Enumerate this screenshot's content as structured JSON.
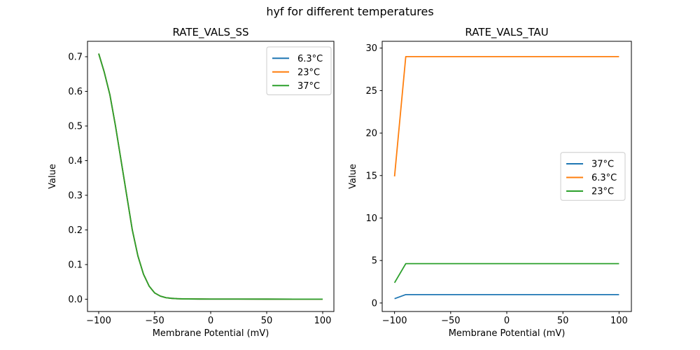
{
  "figure": {
    "suptitle": "hyf for different temperatures",
    "background": "#ffffff",
    "text_color": "#000000",
    "spine_color": "#000000",
    "legend_border_color": "#cccccc",
    "legend_background": "#ffffff"
  },
  "chart_data": [
    {
      "id": "ss",
      "type": "line",
      "title": "RATE_VALS_SS",
      "xlabel": "Membrane Potential (mV)",
      "ylabel": "Value",
      "grid": false,
      "xlim": [
        -110,
        110
      ],
      "ylim": [
        -0.0355,
        0.7445
      ],
      "xticks": {
        "values": [
          -100,
          -50,
          0,
          50,
          100
        ],
        "labels": [
          "−100",
          "−50",
          "0",
          "50",
          "100"
        ]
      },
      "yticks": {
        "values": [
          0.0,
          0.1,
          0.2,
          0.3,
          0.4,
          0.5,
          0.6,
          0.7
        ],
        "labels": [
          "0.0",
          "0.1",
          "0.2",
          "0.3",
          "0.4",
          "0.5",
          "0.6",
          "0.7"
        ]
      },
      "legend": {
        "loc": "upper right",
        "entries": [
          {
            "label": "6.3°C",
            "color": "#1f77b4"
          },
          {
            "label": "23°C",
            "color": "#ff7f0e"
          },
          {
            "label": "37°C",
            "color": "#2ca02c"
          }
        ]
      },
      "series": [
        {
          "name": "6.3°C",
          "color": "#1f77b4",
          "x": [
            -100,
            -95,
            -90,
            -85,
            -80,
            -75,
            -70,
            -65,
            -60,
            -55,
            -50,
            -45,
            -40,
            -35,
            -30,
            -25,
            -20,
            -10,
            0,
            25,
            50,
            75,
            100
          ],
          "y": [
            0.709,
            0.655,
            0.59,
            0.5,
            0.4,
            0.3,
            0.2,
            0.125,
            0.072,
            0.038,
            0.018,
            0.009,
            0.0045,
            0.0025,
            0.0015,
            0.001,
            0.0008,
            0.0005,
            0.0004,
            0.0003,
            0.0002,
            0.0001,
            0.0001
          ]
        },
        {
          "name": "23°C",
          "color": "#ff7f0e",
          "x": [
            -100,
            -95,
            -90,
            -85,
            -80,
            -75,
            -70,
            -65,
            -60,
            -55,
            -50,
            -45,
            -40,
            -35,
            -30,
            -25,
            -20,
            -10,
            0,
            25,
            50,
            75,
            100
          ],
          "y": [
            0.709,
            0.655,
            0.59,
            0.5,
            0.4,
            0.3,
            0.2,
            0.125,
            0.072,
            0.038,
            0.018,
            0.009,
            0.0045,
            0.0025,
            0.0015,
            0.001,
            0.0008,
            0.0005,
            0.0004,
            0.0003,
            0.0002,
            0.0001,
            0.0001
          ]
        },
        {
          "name": "37°C",
          "color": "#2ca02c",
          "x": [
            -100,
            -95,
            -90,
            -85,
            -80,
            -75,
            -70,
            -65,
            -60,
            -55,
            -50,
            -45,
            -40,
            -35,
            -30,
            -25,
            -20,
            -10,
            0,
            25,
            50,
            75,
            100
          ],
          "y": [
            0.709,
            0.655,
            0.59,
            0.5,
            0.4,
            0.3,
            0.2,
            0.125,
            0.072,
            0.038,
            0.018,
            0.009,
            0.0045,
            0.0025,
            0.0015,
            0.001,
            0.0008,
            0.0005,
            0.0004,
            0.0003,
            0.0002,
            0.0001,
            0.0001
          ]
        }
      ]
    },
    {
      "id": "tau",
      "type": "line",
      "title": "RATE_VALS_TAU",
      "xlabel": "Membrane Potential (mV)",
      "ylabel": "Value",
      "grid": false,
      "xlim": [
        -111,
        111
      ],
      "ylim": [
        -1.0,
        30.8
      ],
      "xticks": {
        "values": [
          -100,
          -50,
          0,
          50,
          100
        ],
        "labels": [
          "−100",
          "−50",
          "0",
          "50",
          "100"
        ]
      },
      "yticks": {
        "values": [
          0,
          5,
          10,
          15,
          20,
          25,
          30
        ],
        "labels": [
          "0",
          "5",
          "10",
          "15",
          "20",
          "25",
          "30"
        ]
      },
      "legend": {
        "loc": "center right",
        "entries": [
          {
            "label": "37°C",
            "color": "#1f77b4"
          },
          {
            "label": "6.3°C",
            "color": "#ff7f0e"
          },
          {
            "label": "23°C",
            "color": "#2ca02c"
          }
        ]
      },
      "series": [
        {
          "name": "37°C",
          "color": "#1f77b4",
          "x": [
            -100,
            -90,
            100
          ],
          "y": [
            0.51,
            0.99,
            0.99
          ]
        },
        {
          "name": "6.3°C",
          "color": "#ff7f0e",
          "x": [
            -100,
            -90,
            100
          ],
          "y": [
            14.9,
            29.0,
            29.0
          ]
        },
        {
          "name": "23°C",
          "color": "#2ca02c",
          "x": [
            -100,
            -90,
            100
          ],
          "y": [
            2.38,
            4.63,
            4.63
          ]
        }
      ]
    }
  ]
}
